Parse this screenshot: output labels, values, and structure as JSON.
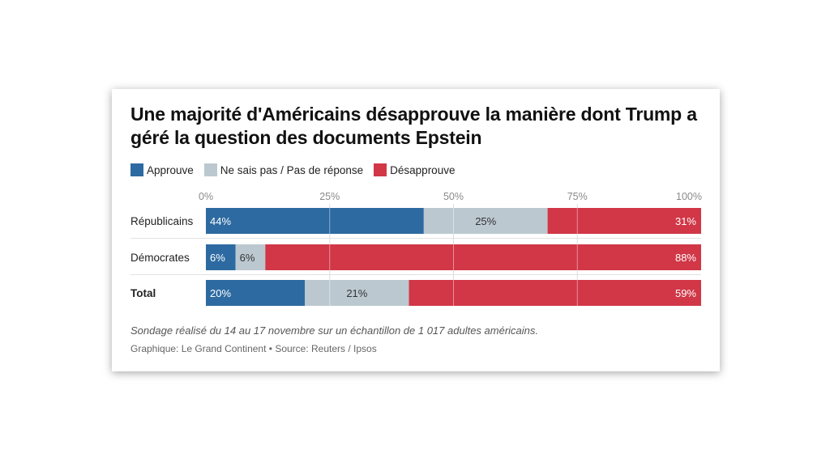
{
  "title": "Une majorité d'Américains désapprouve la manière dont Trump a géré la question des documents Epstein",
  "note": "Sondage réalisé du 14 au 17 novembre sur un échantillon de 1 017 adultes américains.",
  "credit": "Graphique: Le Grand Continent • Source: Reuters / Ipsos",
  "colors": {
    "approve": "#2d6aa1",
    "unsure": "#bcc8d0",
    "disapprove": "#d13747"
  },
  "chart_data": {
    "type": "bar",
    "orientation": "horizontal",
    "stacked": true,
    "title": "Une majorité d'Américains désapprouve la manière dont Trump a géré la question des documents Epstein",
    "categories": [
      "Républicains",
      "Démocrates",
      "Total"
    ],
    "series": [
      {
        "name": "Approuve",
        "values": [
          44,
          6,
          20
        ]
      },
      {
        "name": "Ne sais pas / Pas de réponse",
        "values": [
          25,
          6,
          21
        ]
      },
      {
        "name": "Désapprouve",
        "values": [
          31,
          88,
          59
        ]
      }
    ],
    "xlim": [
      0,
      100
    ],
    "x_ticks": [
      "0%",
      "25%",
      "50%",
      "75%",
      "100%"
    ],
    "grid": true,
    "legend": "top-left"
  }
}
